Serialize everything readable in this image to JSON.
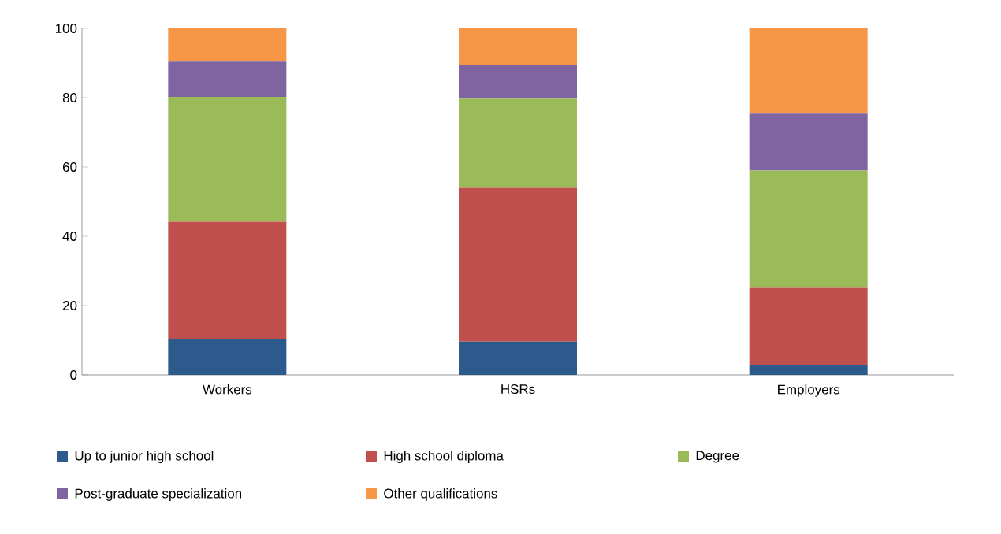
{
  "chart_data": {
    "type": "bar",
    "stacked": true,
    "categories": [
      "Workers",
      "HSRs",
      "Employers"
    ],
    "series": [
      {
        "name": "Up to junior high school",
        "color": "#2c5a8c",
        "values": [
          10.2,
          9.6,
          2.8
        ]
      },
      {
        "name": "High school diploma",
        "color": "#c0504d",
        "values": [
          34,
          44.4,
          22.3
        ]
      },
      {
        "name": "Degree",
        "color": "#9bbb59",
        "values": [
          36,
          25.7,
          33.9
        ]
      },
      {
        "name": "Post-graduate specialization",
        "color": "#8064a2",
        "values": [
          10.2,
          9.8,
          16.4
        ]
      },
      {
        "name": "Other qualifications",
        "color": "#f79646",
        "values": [
          9.6,
          10.5,
          24.6
        ]
      }
    ],
    "ylim": [
      0,
      100
    ],
    "yticks": [
      0,
      20,
      40,
      60,
      80,
      100
    ],
    "grid": false,
    "legend": "bottom"
  }
}
